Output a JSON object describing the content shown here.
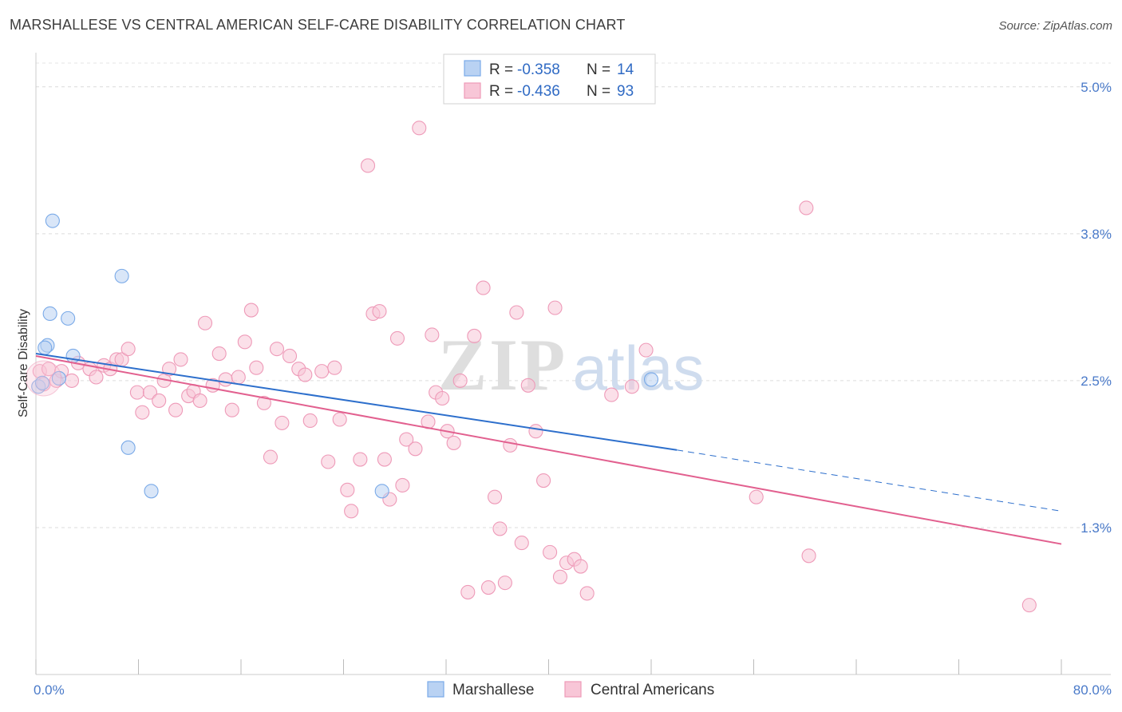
{
  "chart_data": {
    "type": "scatter",
    "title": "MARSHALLESE VS CENTRAL AMERICAN SELF-CARE DISABILITY CORRELATION CHART",
    "source": "Source: ZipAtlas.com",
    "ylabel": "Self-Care Disability",
    "xlabel": "",
    "xlim": [
      0,
      80
    ],
    "ylim": [
      0,
      5.25
    ],
    "x_tick_labels": [
      {
        "value": 0,
        "label": "0.0%"
      },
      {
        "value": 80,
        "label": "80.0%"
      }
    ],
    "y_tick_labels": [
      {
        "value": 1.25,
        "label": "1.3%"
      },
      {
        "value": 2.5,
        "label": "2.5%"
      },
      {
        "value": 3.75,
        "label": "3.8%"
      },
      {
        "value": 5.0,
        "label": "5.0%"
      }
    ],
    "watermark": {
      "zip": "ZIP",
      "atlas": "atlas"
    },
    "legend": {
      "r_label": "R =",
      "n_label": "N =",
      "entries": [
        {
          "r": "-0.358",
          "n": "14"
        },
        {
          "r": "-0.436",
          "n": "93"
        }
      ]
    },
    "series": [
      {
        "name": "Marshallese",
        "color": "#7aaae8",
        "fill": "#b9d2f3",
        "trend_color": "#2d6fcc",
        "trend": {
          "x0": 0,
          "y0": 2.73,
          "x1": 50,
          "y1": 1.91,
          "dash_x1": 80,
          "dash_y1": 1.39
        },
        "points": [
          [
            0.2,
            2.45
          ],
          [
            1.3,
            3.86
          ],
          [
            1.1,
            3.07
          ],
          [
            2.5,
            3.03
          ],
          [
            0.9,
            2.8
          ],
          [
            0.7,
            2.78
          ],
          [
            2.9,
            2.71
          ],
          [
            1.8,
            2.52
          ],
          [
            6.7,
            3.39
          ],
          [
            7.2,
            1.93
          ],
          [
            9.0,
            1.56
          ],
          [
            27.0,
            1.56
          ],
          [
            48.0,
            2.51
          ],
          [
            0.5,
            2.48
          ]
        ]
      },
      {
        "name": "Central Americans",
        "color": "#ee9ab8",
        "fill": "#f8c6d7",
        "trend_color": "#e2608f",
        "trend": {
          "x0": 0,
          "y0": 2.71,
          "x1": 80,
          "y1": 1.11
        },
        "points": [
          [
            0.3,
            2.58
          ],
          [
            0.6,
            2.47
          ],
          [
            1.0,
            2.6
          ],
          [
            1.6,
            2.5
          ],
          [
            2.0,
            2.58
          ],
          [
            2.8,
            2.5
          ],
          [
            3.3,
            2.65
          ],
          [
            4.2,
            2.6
          ],
          [
            4.7,
            2.53
          ],
          [
            5.3,
            2.63
          ],
          [
            5.8,
            2.6
          ],
          [
            6.3,
            2.68
          ],
          [
            6.7,
            2.68
          ],
          [
            7.2,
            2.77
          ],
          [
            7.9,
            2.4
          ],
          [
            8.3,
            2.23
          ],
          [
            8.9,
            2.4
          ],
          [
            9.6,
            2.33
          ],
          [
            10.0,
            2.5
          ],
          [
            10.4,
            2.6
          ],
          [
            10.9,
            2.25
          ],
          [
            11.3,
            2.68
          ],
          [
            11.9,
            2.37
          ],
          [
            12.3,
            2.41
          ],
          [
            12.8,
            2.33
          ],
          [
            13.2,
            2.99
          ],
          [
            13.8,
            2.46
          ],
          [
            14.3,
            2.73
          ],
          [
            14.8,
            2.51
          ],
          [
            15.3,
            2.25
          ],
          [
            15.8,
            2.53
          ],
          [
            16.3,
            2.83
          ],
          [
            16.8,
            3.1
          ],
          [
            17.2,
            2.61
          ],
          [
            17.8,
            2.31
          ],
          [
            18.3,
            1.85
          ],
          [
            18.8,
            2.77
          ],
          [
            19.2,
            2.14
          ],
          [
            19.8,
            2.71
          ],
          [
            20.5,
            2.6
          ],
          [
            21.0,
            2.55
          ],
          [
            21.4,
            2.16
          ],
          [
            22.3,
            2.58
          ],
          [
            22.8,
            1.81
          ],
          [
            23.3,
            2.61
          ],
          [
            23.7,
            2.17
          ],
          [
            24.3,
            1.57
          ],
          [
            24.6,
            1.39
          ],
          [
            25.3,
            1.83
          ],
          [
            25.9,
            4.33
          ],
          [
            26.3,
            3.07
          ],
          [
            26.8,
            3.09
          ],
          [
            27.2,
            1.83
          ],
          [
            27.6,
            1.49
          ],
          [
            28.2,
            2.86
          ],
          [
            28.6,
            1.61
          ],
          [
            28.9,
            2.0
          ],
          [
            29.6,
            1.92
          ],
          [
            29.9,
            4.65
          ],
          [
            30.6,
            2.15
          ],
          [
            30.9,
            2.89
          ],
          [
            31.2,
            2.4
          ],
          [
            31.7,
            2.35
          ],
          [
            32.1,
            2.07
          ],
          [
            32.6,
            1.97
          ],
          [
            33.1,
            2.5
          ],
          [
            33.7,
            0.7
          ],
          [
            34.2,
            2.88
          ],
          [
            34.9,
            3.29
          ],
          [
            35.3,
            0.74
          ],
          [
            35.8,
            1.51
          ],
          [
            36.2,
            1.24
          ],
          [
            36.6,
            0.78
          ],
          [
            37.0,
            1.95
          ],
          [
            37.5,
            3.08
          ],
          [
            37.9,
            1.12
          ],
          [
            38.4,
            2.46
          ],
          [
            39.0,
            2.07
          ],
          [
            39.6,
            1.65
          ],
          [
            40.1,
            1.04
          ],
          [
            40.5,
            3.12
          ],
          [
            40.9,
            0.83
          ],
          [
            41.4,
            0.95
          ],
          [
            42.0,
            0.98
          ],
          [
            42.5,
            0.92
          ],
          [
            43.0,
            0.69
          ],
          [
            44.9,
            2.38
          ],
          [
            46.5,
            2.45
          ],
          [
            47.6,
            2.76
          ],
          [
            56.2,
            1.51
          ],
          [
            60.1,
            3.97
          ],
          [
            60.3,
            1.01
          ],
          [
            77.5,
            0.59
          ]
        ]
      }
    ]
  }
}
